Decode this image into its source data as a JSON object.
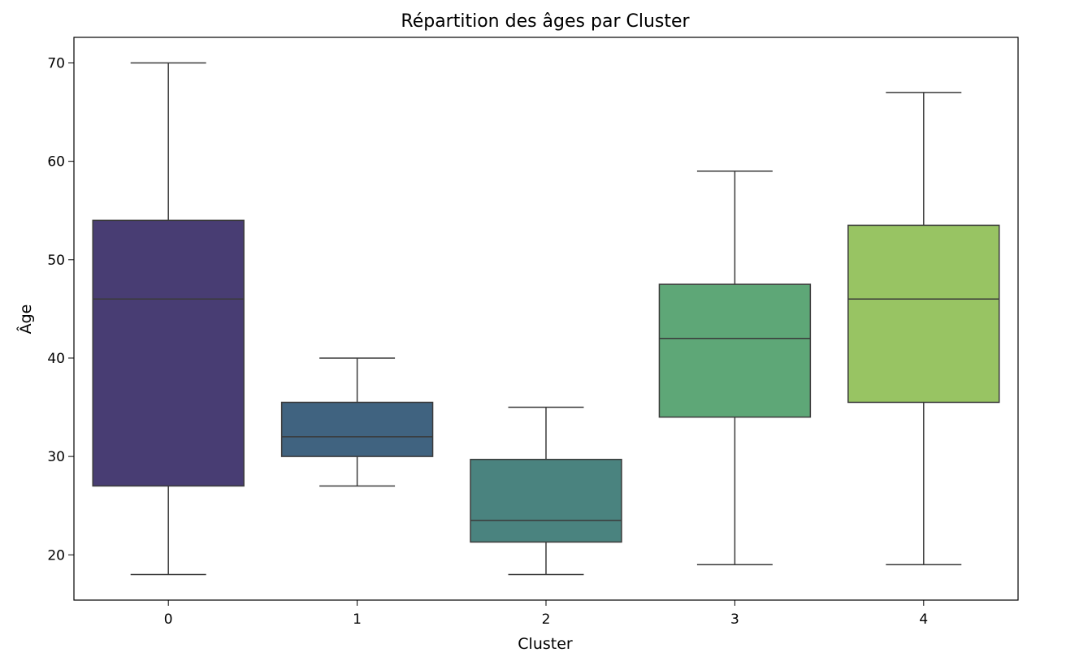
{
  "chart_data": {
    "type": "box",
    "title": "Répartition des âges par Cluster",
    "xlabel": "Cluster",
    "ylabel": "Âge",
    "categories": [
      "0",
      "1",
      "2",
      "3",
      "4"
    ],
    "ylim": [
      15.4,
      72.6
    ],
    "yticks": [
      20,
      30,
      40,
      50,
      60,
      70
    ],
    "grid": false,
    "legend": "none",
    "boxes": [
      {
        "category": "0",
        "whisker_low": 18,
        "q1": 27,
        "median": 46,
        "q3": 54,
        "whisker_high": 70,
        "color": "#483d73"
      },
      {
        "category": "1",
        "whisker_low": 27,
        "q1": 30,
        "median": 32,
        "q3": 35.5,
        "whisker_high": 40,
        "color": "#406380"
      },
      {
        "category": "2",
        "whisker_low": 18,
        "q1": 21.3,
        "median": 23.5,
        "q3": 29.7,
        "whisker_high": 35,
        "color": "#4a837f"
      },
      {
        "category": "3",
        "whisker_low": 19,
        "q1": 34,
        "median": 42,
        "q3": 47.5,
        "whisker_high": 59,
        "color": "#5ea777"
      },
      {
        "category": "4",
        "whisker_low": 19,
        "q1": 35.5,
        "median": 46,
        "q3": 53.5,
        "whisker_high": 67,
        "color": "#98c463"
      }
    ]
  }
}
